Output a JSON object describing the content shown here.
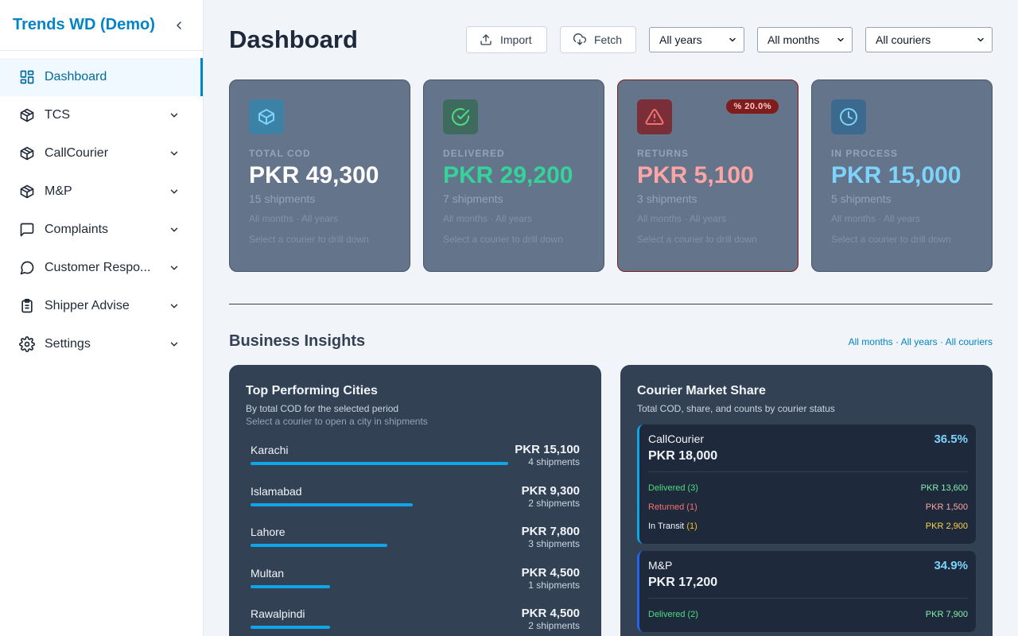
{
  "app": {
    "brand": "Trends WD (Demo)"
  },
  "sidebar": {
    "items": [
      {
        "label": "Dashboard",
        "icon": "dashboard-icon"
      },
      {
        "label": "TCS",
        "icon": "package-icon"
      },
      {
        "label": "CallCourier",
        "icon": "package-icon"
      },
      {
        "label": "M&P",
        "icon": "package-icon"
      },
      {
        "label": "Complaints",
        "icon": "message-square-icon"
      },
      {
        "label": "Customer Respo...",
        "icon": "message-circle-icon"
      },
      {
        "label": "Shipper Advise",
        "icon": "clipboard-icon"
      },
      {
        "label": "Settings",
        "icon": "gear-icon"
      }
    ]
  },
  "header": {
    "title": "Dashboard",
    "import_label": "Import",
    "fetch_label": "Fetch",
    "year_select": "All years",
    "month_select": "All months",
    "courier_select": "All couriers"
  },
  "kpis": [
    {
      "label": "TOTAL COD",
      "value": "PKR 49,300",
      "count": "15",
      "count_unit": "shipments",
      "meta": "All months · All years",
      "hint": "Select a courier to drill down",
      "color": "#ffffff"
    },
    {
      "label": "DELIVERED",
      "value": "PKR 29,200",
      "count": "7",
      "count_unit": "shipments",
      "meta": "All months · All years",
      "hint": "Select a courier to drill down",
      "color": "#34d399"
    },
    {
      "label": "RETURNS",
      "value": "PKR 5,100",
      "count": "3",
      "count_unit": "shipments",
      "meta": "All months · All years",
      "hint": "Select a courier to drill down",
      "color": "#fca5a5",
      "badge": "20.0%"
    },
    {
      "label": "IN PROCESS",
      "value": "PKR 15,000",
      "count": "5",
      "count_unit": "shipments",
      "meta": "All months · All years",
      "hint": "Select a courier to drill down",
      "color": "#7dd3fc"
    }
  ],
  "insights": {
    "title": "Business Insights",
    "filter": "All months · All years · All couriers"
  },
  "cities": {
    "title": "Top Performing Cities",
    "subtitle": "By total COD for the selected period",
    "hint": "Select a courier to open a city in shipments",
    "rows": [
      {
        "name": "Karachi",
        "amount": "PKR 15,100",
        "ship": "4 shipments",
        "share": 1.0
      },
      {
        "name": "Islamabad",
        "amount": "PKR 9,300",
        "ship": "2 shipments",
        "share": 0.63
      },
      {
        "name": "Lahore",
        "amount": "PKR 7,800",
        "ship": "3 shipments",
        "share": 0.53
      },
      {
        "name": "Multan",
        "amount": "PKR 4,500",
        "ship": "1 shipments",
        "share": 0.31
      },
      {
        "name": "Rawalpindi",
        "amount": "PKR 4,500",
        "ship": "2 shipments",
        "share": 0.31
      }
    ]
  },
  "market": {
    "title": "Courier Market Share",
    "subtitle": "Total COD, share, and counts by courier status",
    "couriers": [
      {
        "name": "CallCourier",
        "pct": "36.5%",
        "total": "PKR 18,000",
        "delivered": "Delivered (3)",
        "delivered_val": "PKR 13,600",
        "returned": "Returned (1)",
        "returned_val": "PKR 1,500",
        "transit": "In Transit",
        "transit_count": "(1)",
        "transit_val": "PKR 2,900"
      },
      {
        "name": "M&P",
        "pct": "34.9%",
        "total": "PKR 17,200",
        "delivered": "Delivered (2)",
        "delivered_val": "PKR 7,900"
      }
    ]
  }
}
